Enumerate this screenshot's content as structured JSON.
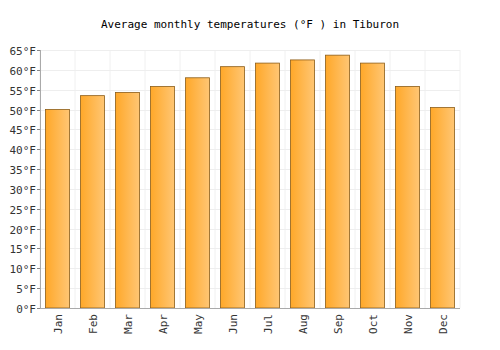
{
  "chart_data": {
    "type": "bar",
    "title": "Average monthly temperatures (°F ) in Tiburon",
    "categories": [
      "Jan",
      "Feb",
      "Mar",
      "Apr",
      "May",
      "Jun",
      "Jul",
      "Aug",
      "Sep",
      "Oct",
      "Nov",
      "Dec"
    ],
    "values": [
      50,
      53.5,
      54.3,
      55.8,
      58,
      60.8,
      61.7,
      62.5,
      63.7,
      61.7,
      55.8,
      50.5
    ],
    "color": "#ffa829",
    "ylim": [
      0,
      65
    ],
    "yticks": [
      {
        "value": 0,
        "label": "0°F"
      },
      {
        "value": 5,
        "label": "5°F"
      },
      {
        "value": 10,
        "label": "10°F"
      },
      {
        "value": 15,
        "label": "15°F"
      },
      {
        "value": 20,
        "label": "20°F"
      },
      {
        "value": 25,
        "label": "25°F"
      },
      {
        "value": 30,
        "label": "30°F"
      },
      {
        "value": 35,
        "label": "35°F"
      },
      {
        "value": 40,
        "label": "40°F"
      },
      {
        "value": 45,
        "label": "45°F"
      },
      {
        "value": 50,
        "label": "50°F"
      },
      {
        "value": 55,
        "label": "55°F"
      },
      {
        "value": 60,
        "label": "60°F"
      },
      {
        "value": 65,
        "label": "65°F"
      }
    ],
    "grid": true
  }
}
